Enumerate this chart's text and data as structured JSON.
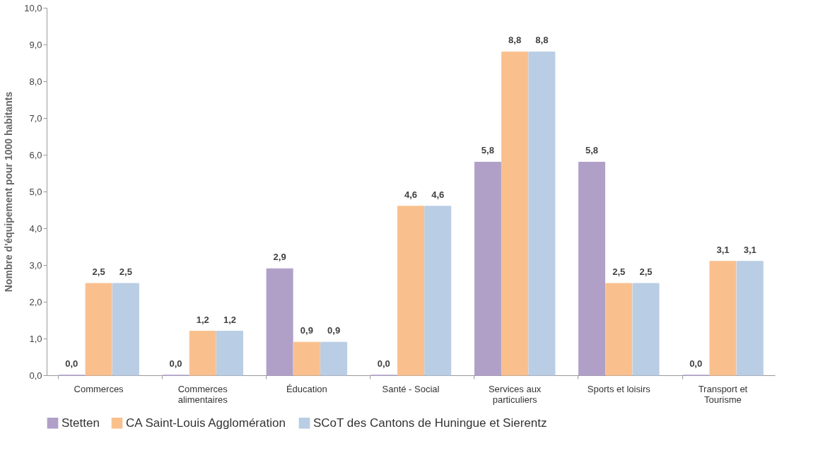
{
  "chart_data": {
    "type": "bar",
    "ylabel": "Nombre d'équipement pour 1000 habitants",
    "categories": [
      "Commerces",
      "Commerces alimentaires",
      "Éducation",
      "Santé - Social",
      "Services aux particuliers",
      "Sports et loisirs",
      "Transport et Tourisme"
    ],
    "series": [
      {
        "name": "Stetten",
        "color": "#b0a0c8",
        "values": [
          0.0,
          0.0,
          2.9,
          0.0,
          5.8,
          5.8,
          0.0
        ],
        "value_labels": [
          "0,0",
          "0,0",
          "2,9",
          "0,0",
          "5,8",
          "5,8",
          "0,0"
        ]
      },
      {
        "name": "CA Saint-Louis Agglomération",
        "color": "#f9c08e",
        "values": [
          2.5,
          1.2,
          0.9,
          4.6,
          8.8,
          2.5,
          3.1
        ],
        "value_labels": [
          "2,5",
          "1,2",
          "0,9",
          "4,6",
          "8,8",
          "2,5",
          "3,1"
        ]
      },
      {
        "name": "SCoT des Cantons de Huningue et Sierentz",
        "color": "#b9cde4",
        "values": [
          2.5,
          1.2,
          0.9,
          4.6,
          8.8,
          2.5,
          3.1
        ],
        "value_labels": [
          "2,5",
          "1,2",
          "0,9",
          "4,6",
          "8,8",
          "2,5",
          "3,1"
        ]
      }
    ],
    "ylim": [
      0,
      10
    ],
    "yticks": [
      {
        "value": 0,
        "label": "0,0"
      },
      {
        "value": 1,
        "label": "1,0"
      },
      {
        "value": 2,
        "label": "2,0"
      },
      {
        "value": 3,
        "label": "3,0"
      },
      {
        "value": 4,
        "label": "4,0"
      },
      {
        "value": 5,
        "label": "5,0"
      },
      {
        "value": 6,
        "label": "6,0"
      },
      {
        "value": 7,
        "label": "7,0"
      },
      {
        "value": 8,
        "label": "8,0"
      },
      {
        "value": 9,
        "label": "9,0"
      },
      {
        "value": 10,
        "label": "10,0"
      }
    ],
    "grid": false,
    "legend": "bottom"
  }
}
